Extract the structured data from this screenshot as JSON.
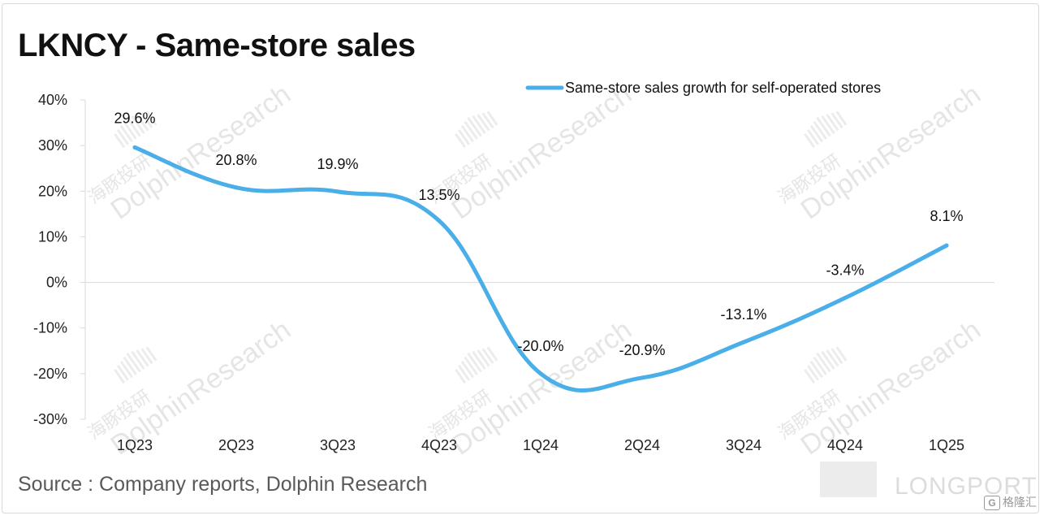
{
  "title": "LKNCY - Same-store sales",
  "source": "Source : Company reports, Dolphin Research",
  "watermark": {
    "text": "DolphinResearch",
    "cn": "海豚投研"
  },
  "brand": {
    "text": "LONGPORT",
    "badge_icon": "G",
    "badge_text": "格隆汇"
  },
  "colors": {
    "line": "#4aaee8",
    "axis": "#d9d9d9",
    "text": "#111111"
  },
  "chart_data": {
    "type": "line",
    "title": "LKNCY - Same-store sales",
    "categories": [
      "1Q23",
      "2Q23",
      "3Q23",
      "4Q23",
      "1Q24",
      "2Q24",
      "3Q24",
      "4Q24",
      "1Q25"
    ],
    "series": [
      {
        "name": "Same-store sales growth for self-operated stores",
        "values": [
          29.6,
          20.8,
          19.9,
          13.5,
          -20.0,
          -20.9,
          -13.1,
          -3.4,
          8.1
        ],
        "labels": [
          "29.6%",
          "20.8%",
          "19.9%",
          "13.5%",
          "-20.0%",
          "-20.9%",
          "-13.1%",
          "-3.4%",
          "8.1%"
        ]
      }
    ],
    "ylim": [
      -30,
      40
    ],
    "yticks": [
      40,
      30,
      20,
      10,
      0,
      -10,
      -20,
      -30
    ],
    "ytick_labels": [
      "40%",
      "30%",
      "20%",
      "10%",
      "0%",
      "-10%",
      "-20%",
      "-30%"
    ],
    "xlabel": "",
    "ylabel": "",
    "legend": "top-right",
    "grid": false
  }
}
